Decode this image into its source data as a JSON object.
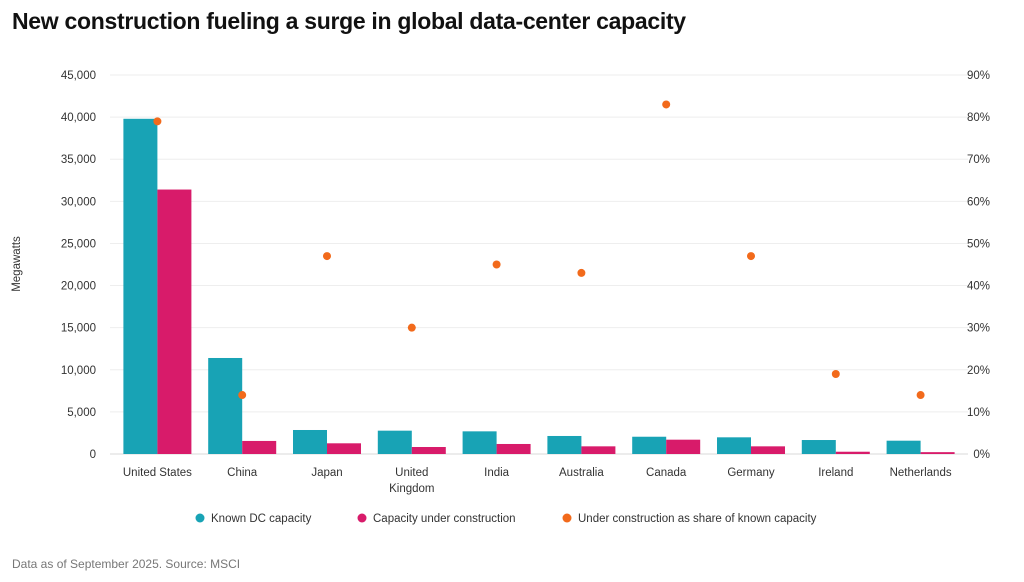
{
  "title": "New construction fueling a surge in global data-center capacity",
  "footnote": "Data as of September 2025. Source: MSCI",
  "chart_data": {
    "type": "bar",
    "title": "New construction fueling a surge in global data-center capacity",
    "categories": [
      "United States",
      "China",
      "Japan",
      "United Kingdom",
      "India",
      "Australia",
      "Canada",
      "Germany",
      "Ireland",
      "Netherlands"
    ],
    "category_labels": [
      [
        "United States"
      ],
      [
        "China"
      ],
      [
        "Japan"
      ],
      [
        "United",
        "Kingdom"
      ],
      [
        "India"
      ],
      [
        "Australia"
      ],
      [
        "Canada"
      ],
      [
        "Germany"
      ],
      [
        "Ireland"
      ],
      [
        "Netherlands"
      ]
    ],
    "ylabel": "Megawatts",
    "ylim": [
      0,
      45000
    ],
    "yticks": [
      "0",
      "5,000",
      "10,000",
      "15,000",
      "20,000",
      "25,000",
      "30,000",
      "35,000",
      "40,000",
      "45,000"
    ],
    "y2lim": [
      0,
      90
    ],
    "y2ticks": [
      "0%",
      "10%",
      "20%",
      "30%",
      "40%",
      "50%",
      "60%",
      "70%",
      "80%",
      "90%"
    ],
    "grid": true,
    "legend_position": "bottom",
    "series": [
      {
        "name": "Known DC capacity",
        "type": "bar",
        "axis": "left",
        "color": "#18a3b5",
        "values": [
          39800,
          11400,
          2850,
          2770,
          2690,
          2140,
          2050,
          1980,
          1660,
          1580
        ]
      },
      {
        "name": "Capacity under construction",
        "type": "bar",
        "axis": "left",
        "color": "#d81b6a",
        "values": [
          31400,
          1550,
          1270,
          830,
          1190,
          910,
          1700,
          910,
          270,
          220
        ]
      },
      {
        "name": "Under construction as share of known capacity",
        "type": "scatter",
        "axis": "right",
        "color": "#f26a1b",
        "values": [
          79,
          14,
          47,
          30,
          45,
          43,
          83,
          47,
          19,
          14
        ]
      }
    ]
  }
}
